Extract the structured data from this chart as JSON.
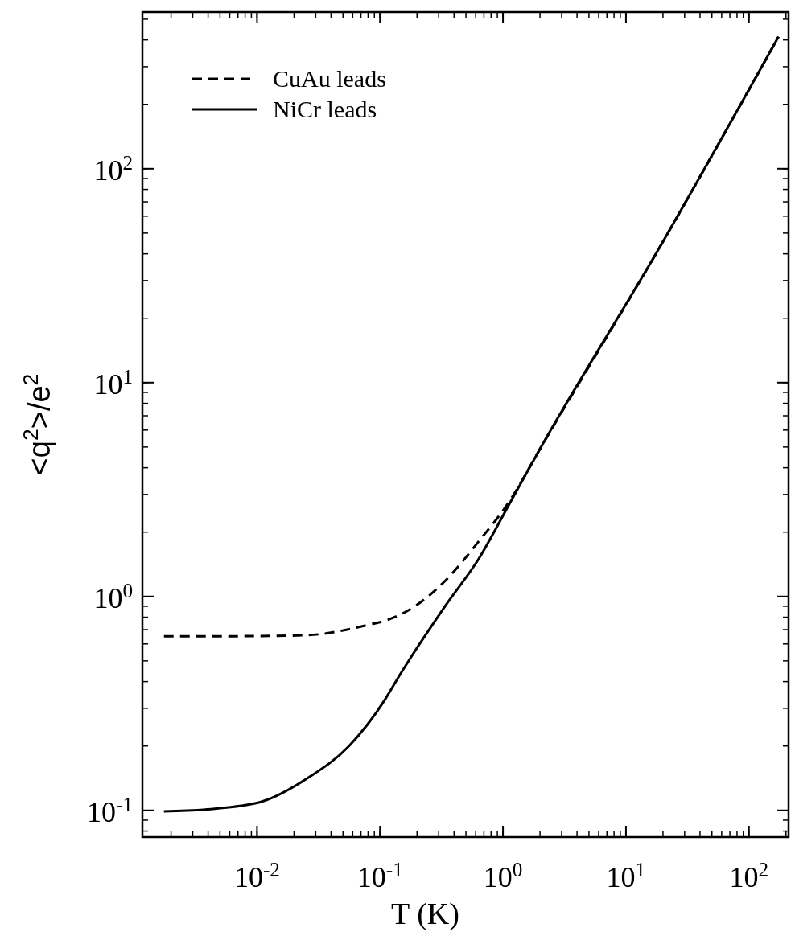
{
  "chart_data": {
    "type": "line",
    "xlabel": "T (K)",
    "ylabel": "<q$^{2}$>/e$^{2}$",
    "log": "xy",
    "xlim": [
      0.00117,
      210
    ],
    "ylim": [
      0.075,
      540
    ],
    "xticks": [
      {
        "value": 0.01,
        "label": "10$^{-2}$"
      },
      {
        "value": 0.1,
        "label": "10$^{-1}$"
      },
      {
        "value": 1,
        "label": "10$^{0}$"
      },
      {
        "value": 10,
        "label": "10$^{1}$"
      },
      {
        "value": 100,
        "label": "10$^{2}$"
      }
    ],
    "yticks": [
      {
        "value": 0.1,
        "label": "10$^{-1}$"
      },
      {
        "value": 1,
        "label": "10$^{0}$"
      },
      {
        "value": 10,
        "label": "10$^{1}$"
      },
      {
        "value": 100,
        "label": "10$^{2}$"
      }
    ],
    "legend": "top left",
    "grid": false,
    "marker": "none",
    "series": [
      {
        "name": "CuAu leads",
        "color": "#000000",
        "line_style": "dashed",
        "x": [
          0.00175,
          0.005,
          0.01,
          0.026,
          0.083,
          0.11,
          0.195,
          0.347,
          0.63,
          1.12,
          2.0,
          18.4,
          174
        ],
        "values": [
          0.652,
          0.652,
          0.653,
          0.66,
          0.74,
          0.77,
          0.905,
          1.2,
          1.8,
          2.77,
          4.9,
          42,
          414
        ]
      },
      {
        "name": "NiCr leads",
        "color": "#000000",
        "line_style": "solid",
        "x": [
          0.00175,
          0.0047,
          0.011,
          0.026,
          0.056,
          0.11,
          0.145,
          0.347,
          0.63,
          1.12,
          2.0,
          18.4,
          174
        ],
        "values": [
          0.099,
          0.102,
          0.11,
          0.142,
          0.2,
          0.33,
          0.43,
          0.92,
          1.49,
          2.69,
          4.9,
          42,
          414
        ]
      }
    ]
  }
}
